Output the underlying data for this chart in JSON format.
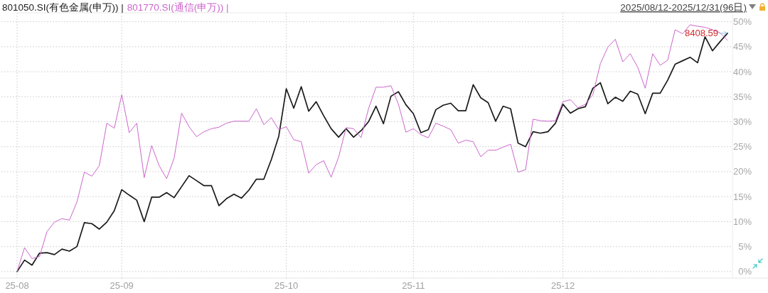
{
  "chart_data": {
    "type": "line",
    "subtitle": "2025/08/12-2025/12/31(96日)",
    "categories": [
      "25-08",
      null,
      null,
      null,
      null,
      null,
      null,
      null,
      null,
      null,
      null,
      null,
      null,
      null,
      "25-09",
      null,
      null,
      null,
      null,
      null,
      null,
      null,
      null,
      null,
      null,
      null,
      null,
      null,
      null,
      null,
      null,
      null,
      null,
      null,
      null,
      null,
      "25-10",
      null,
      null,
      null,
      null,
      null,
      null,
      null,
      null,
      null,
      null,
      null,
      null,
      null,
      null,
      null,
      null,
      "25-11",
      null,
      null,
      null,
      null,
      null,
      null,
      null,
      null,
      null,
      null,
      null,
      null,
      null,
      null,
      null,
      null,
      null,
      null,
      null,
      "25-12",
      null,
      null,
      null,
      null,
      null,
      null,
      null,
      null,
      null,
      null,
      null,
      null,
      null,
      null,
      null,
      null,
      null,
      null,
      null,
      null,
      null,
      null
    ],
    "series": [
      {
        "name": "801050.SI(有色金属(申万)) |",
        "color": "#1a1a1a",
        "values": [
          0.0,
          2.3,
          1.3,
          3.7,
          3.8,
          3.4,
          4.5,
          4.1,
          5.0,
          9.8,
          9.6,
          8.5,
          9.9,
          12.2,
          16.4,
          15.3,
          14.3,
          10.0,
          14.9,
          14.9,
          15.8,
          14.8,
          17.0,
          19.2,
          18.2,
          17.2,
          17.2,
          13.2,
          14.6,
          15.5,
          14.7,
          16.3,
          18.5,
          18.5,
          22.4,
          27.1,
          36.6,
          32.7,
          37.0,
          32.1,
          34.0,
          31.2,
          28.6,
          26.9,
          28.6,
          26.9,
          28.2,
          30.0,
          33.1,
          29.6,
          35.1,
          36.0,
          33.4,
          31.6,
          27.8,
          28.4,
          32.4,
          33.3,
          33.7,
          32.2,
          32.2,
          37.4,
          34.8,
          33.8,
          30.1,
          33.1,
          32.6,
          25.7,
          25.0,
          28.0,
          27.7,
          28.0,
          29.7,
          33.5,
          31.7,
          32.6,
          33.0,
          36.7,
          37.8,
          33.6,
          34.9,
          34.1,
          36.1,
          35.5,
          31.6,
          35.7,
          35.7,
          38.3,
          41.5,
          42.2,
          42.9,
          41.8,
          47.0,
          44.2,
          46.0,
          47.7
        ]
      },
      {
        "name": "801770.SI(通信(申万)) |",
        "color": "#cc66cc",
        "values": [
          0.0,
          4.8,
          2.6,
          3.0,
          8.0,
          9.9,
          10.6,
          10.3,
          13.9,
          19.9,
          19.1,
          21.2,
          29.7,
          28.7,
          35.4,
          27.8,
          29.7,
          18.8,
          25.2,
          21.2,
          18.6,
          22.7,
          31.7,
          29.0,
          27.0,
          28.0,
          28.6,
          28.9,
          29.7,
          30.1,
          30.1,
          30.1,
          32.6,
          29.4,
          30.8,
          28.4,
          29.0,
          26.4,
          26.0,
          19.7,
          21.4,
          22.2,
          18.9,
          22.9,
          28.8,
          28.6,
          26.8,
          32.6,
          36.9,
          36.9,
          37.2,
          33.5,
          27.9,
          28.6,
          27.4,
          26.8,
          29.7,
          29.1,
          28.4,
          25.7,
          26.3,
          26.0,
          23.0,
          24.3,
          24.3,
          24.9,
          25.5,
          19.9,
          20.4,
          30.5,
          30.2,
          30.1,
          30.2,
          34.0,
          34.4,
          32.8,
          33.5,
          35.4,
          41.6,
          44.9,
          46.5,
          42.0,
          43.6,
          40.9,
          36.7,
          43.6,
          41.3,
          42.3,
          48.4,
          47.6,
          49.4,
          49.1,
          48.9,
          48.4,
          47.8,
          46.3
        ]
      }
    ],
    "ylim": [
      -1.3,
      51.8
    ],
    "yticks": [
      {
        "value": 0,
        "label": "0%"
      },
      {
        "value": 5,
        "label": "5%"
      },
      {
        "value": 10,
        "label": "10%"
      },
      {
        "value": 15,
        "label": "15%"
      },
      {
        "value": 20,
        "label": "20%"
      },
      {
        "value": 25,
        "label": "25%"
      },
      {
        "value": 30,
        "label": "30%"
      },
      {
        "value": 35,
        "label": "35%"
      },
      {
        "value": 40,
        "label": "40%"
      },
      {
        "value": 45,
        "label": "45%"
      },
      {
        "value": 50,
        "label": "50%"
      }
    ],
    "grid": true,
    "legend": "top left",
    "annotations": [
      "8408.59"
    ]
  }
}
